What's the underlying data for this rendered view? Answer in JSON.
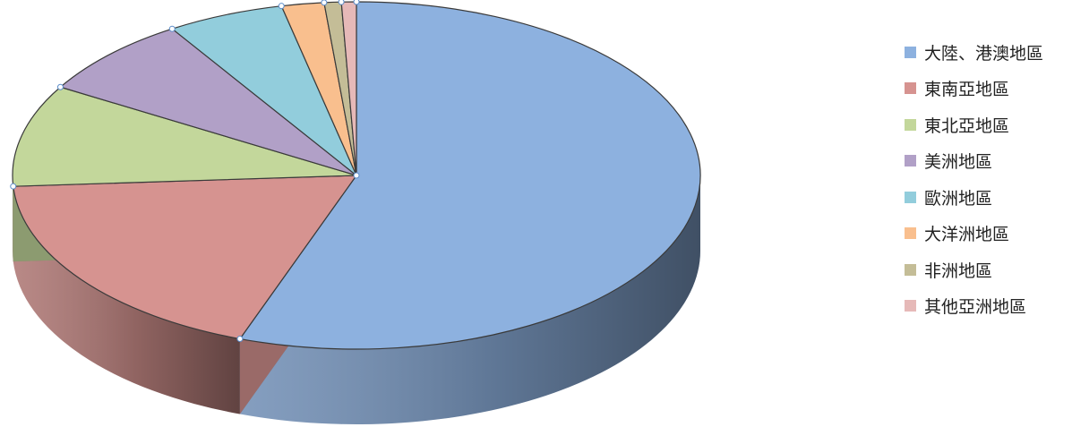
{
  "chart_data": {
    "type": "pie",
    "style": "3d",
    "legend_position": "right",
    "series": [
      {
        "name": "大陸、港澳地區",
        "value": 55.5,
        "color": "#8DB1DF"
      },
      {
        "name": "東南亞地區",
        "value": 18.5,
        "color": "#D69390"
      },
      {
        "name": "東北亞地區",
        "value": 9.5,
        "color": "#C3D79B"
      },
      {
        "name": "美洲地區",
        "value": 7.5,
        "color": "#B1A0C7"
      },
      {
        "name": "歐洲地區",
        "value": 5.5,
        "color": "#92CDDC"
      },
      {
        "name": "大洋洲地區",
        "value": 2.0,
        "color": "#F9BF8E"
      },
      {
        "name": "非洲地區",
        "value": 0.8,
        "color": "#C4BD97"
      },
      {
        "name": "其他亞洲地區",
        "value": 0.7,
        "color": "#E6B9B8"
      }
    ]
  }
}
